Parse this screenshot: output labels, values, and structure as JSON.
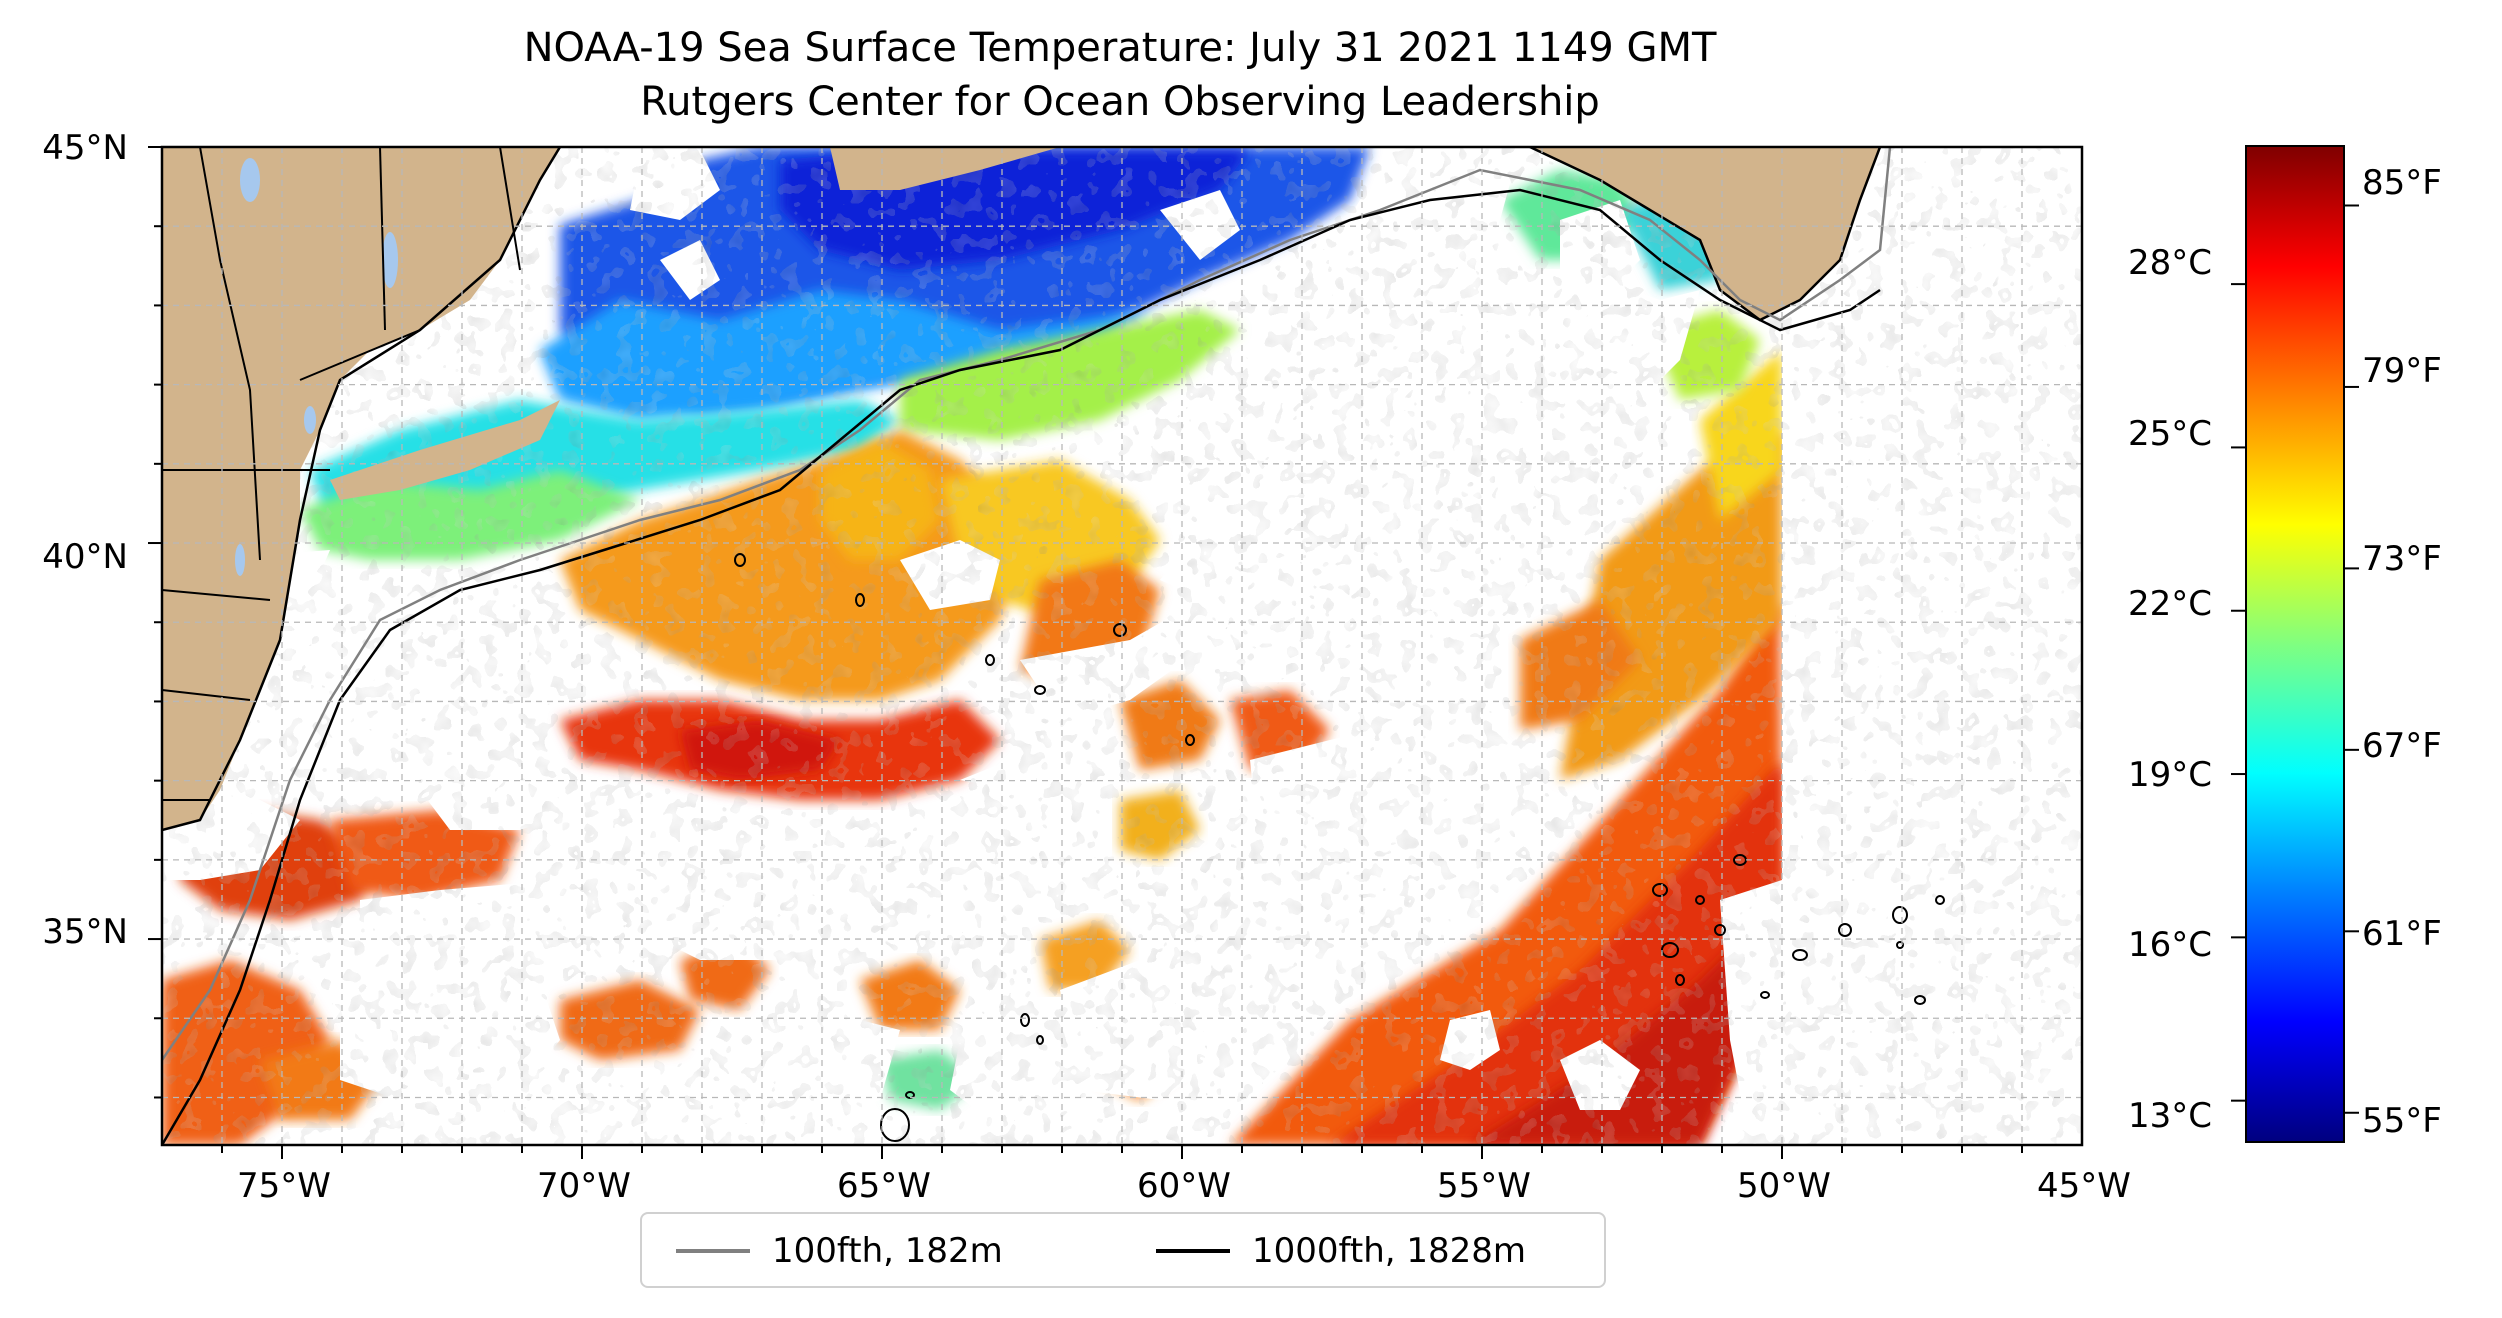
{
  "title": "NOAA-19 Sea Surface Temperature: July 31 2021 1149 GMT",
  "subtitle": "Rutgers Center for Ocean Observing Leadership",
  "map": {
    "lon_range": [
      -77,
      -45
    ],
    "lat_range": [
      32.4,
      45
    ],
    "gridlines": "dashed, 1 degree",
    "lat_labels": [
      "45°N",
      "40°N",
      "35°N"
    ],
    "lat_values": [
      45,
      40,
      35
    ],
    "lon_labels": [
      "75°W",
      "70°W",
      "65°W",
      "60°W",
      "55°W",
      "50°W",
      "45°W"
    ],
    "lon_values": [
      -75,
      -70,
      -65,
      -60,
      -55,
      -50,
      -45
    ],
    "colors": {
      "land": "#d2b48c",
      "lakes": "#a6c8ee",
      "no_data": "#ffffff",
      "isobath_100fth": "#808080",
      "isobath_1000fth": "#000000"
    }
  },
  "colorbar": {
    "colormap": "jet",
    "range_f": [
      54,
      87
    ],
    "celsius_labels": [
      "28°C",
      "25°C",
      "22°C",
      "19°C",
      "16°C",
      "13°C"
    ],
    "celsius_values": [
      28,
      25,
      22,
      19,
      16,
      13
    ],
    "fahrenheit_labels": [
      "85°F",
      "79°F",
      "73°F",
      "67°F",
      "61°F",
      "55°F"
    ],
    "fahrenheit_values": [
      85,
      79,
      73,
      67,
      61,
      55
    ]
  },
  "legend": {
    "items": [
      {
        "label": "100fth, 182m",
        "color": "#808080"
      },
      {
        "label": "1000fth, 1828m",
        "color": "#000000"
      }
    ]
  }
}
